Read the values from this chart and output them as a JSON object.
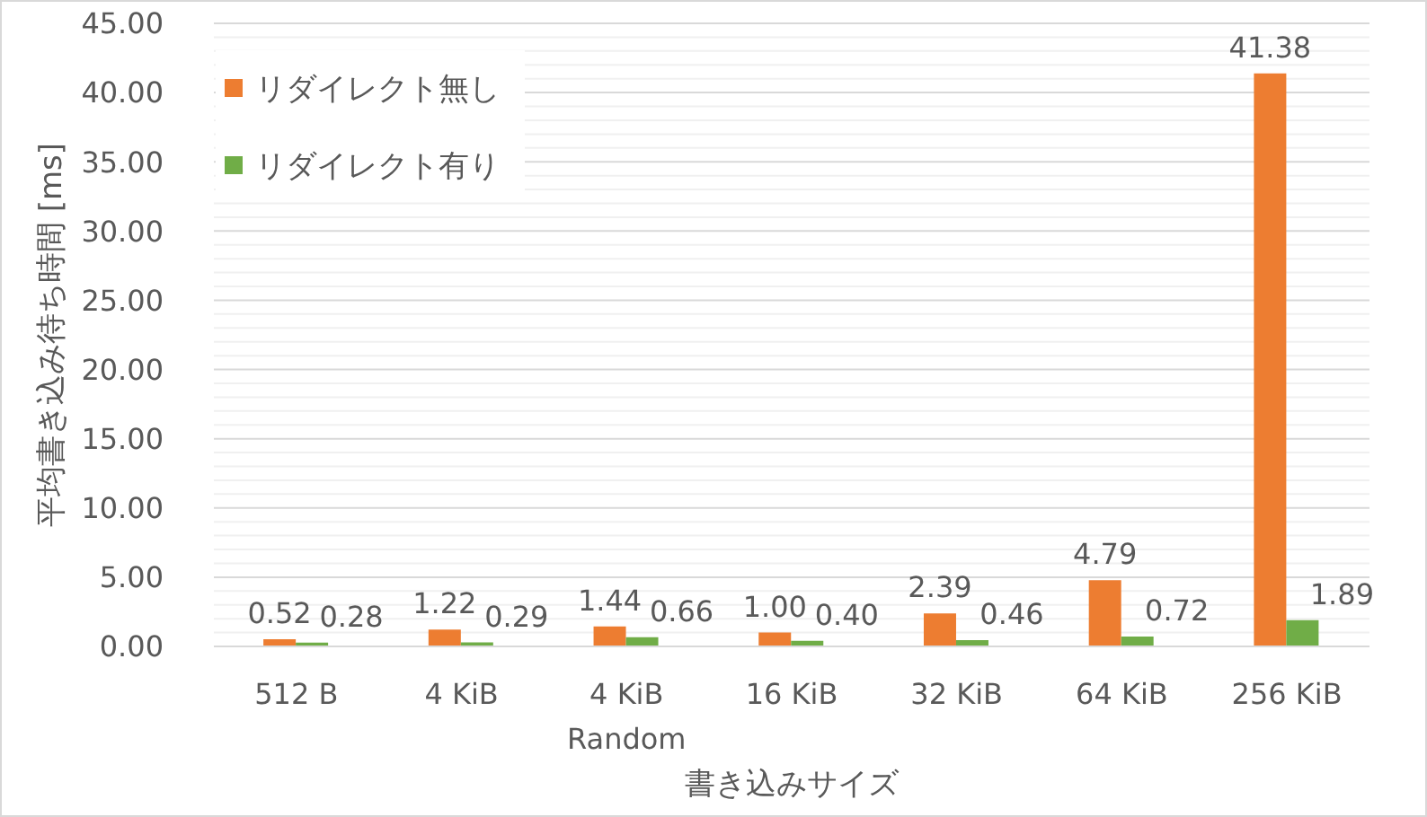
{
  "chart_data": {
    "type": "bar",
    "xlabel": "書き込みサイズ",
    "ylabel": "平均書き込み待ち時間 [ms]",
    "categories": [
      "512 B",
      "4 KiB",
      "4 KiB\nRandom",
      "16 KiB",
      "32 KiB",
      "64 KiB",
      "256 KiB"
    ],
    "series": [
      {
        "name": "リダイレクト無し",
        "color": "#ed7d31",
        "values": [
          0.52,
          1.22,
          1.44,
          1.0,
          2.39,
          4.79,
          41.38
        ],
        "value_labels": [
          "0.52",
          "1.22",
          "1.44",
          "1.00",
          "2.39",
          "4.79",
          "41.38"
        ]
      },
      {
        "name": "リダイレクト有り",
        "color": "#70ad47",
        "values": [
          0.28,
          0.29,
          0.66,
          0.4,
          0.46,
          0.72,
          1.89
        ],
        "value_labels": [
          "0.28",
          "0.29",
          "0.66",
          "0.40",
          "0.46",
          "0.72",
          "1.89"
        ]
      }
    ],
    "ylim": [
      0,
      45
    ],
    "yticks": [
      {
        "value": 0,
        "label": "0.00"
      },
      {
        "value": 1,
        "label": null
      },
      {
        "value": 2,
        "label": null
      },
      {
        "value": 3,
        "label": null
      },
      {
        "value": 4,
        "label": null
      },
      {
        "value": 5,
        "label": "5.00"
      },
      {
        "value": 6,
        "label": null
      },
      {
        "value": 7,
        "label": null
      },
      {
        "value": 8,
        "label": null
      },
      {
        "value": 9,
        "label": null
      },
      {
        "value": 10,
        "label": "10.00"
      },
      {
        "value": 11,
        "label": null
      },
      {
        "value": 12,
        "label": null
      },
      {
        "value": 13,
        "label": null
      },
      {
        "value": 14,
        "label": null
      },
      {
        "value": 15,
        "label": "15.00"
      },
      {
        "value": 16,
        "label": null
      },
      {
        "value": 17,
        "label": null
      },
      {
        "value": 18,
        "label": null
      },
      {
        "value": 19,
        "label": null
      },
      {
        "value": 20,
        "label": "20.00"
      },
      {
        "value": 21,
        "label": null
      },
      {
        "value": 22,
        "label": null
      },
      {
        "value": 23,
        "label": null
      },
      {
        "value": 24,
        "label": null
      },
      {
        "value": 25,
        "label": "25.00"
      },
      {
        "value": 26,
        "label": null
      },
      {
        "value": 27,
        "label": null
      },
      {
        "value": 28,
        "label": null
      },
      {
        "value": 29,
        "label": null
      },
      {
        "value": 30,
        "label": "30.00"
      },
      {
        "value": 31,
        "label": null
      },
      {
        "value": 32,
        "label": null
      },
      {
        "value": 33,
        "label": null
      },
      {
        "value": 34,
        "label": null
      },
      {
        "value": 35,
        "label": "35.00"
      },
      {
        "value": 36,
        "label": null
      },
      {
        "value": 37,
        "label": null
      },
      {
        "value": 38,
        "label": null
      },
      {
        "value": 39,
        "label": null
      },
      {
        "value": 40,
        "label": "40.00"
      },
      {
        "value": 41,
        "label": null
      },
      {
        "value": 42,
        "label": null
      },
      {
        "value": 43,
        "label": null
      },
      {
        "value": 44,
        "label": null
      },
      {
        "value": 45,
        "label": "45.00"
      }
    ],
    "grid": "y",
    "legend": "top left"
  }
}
